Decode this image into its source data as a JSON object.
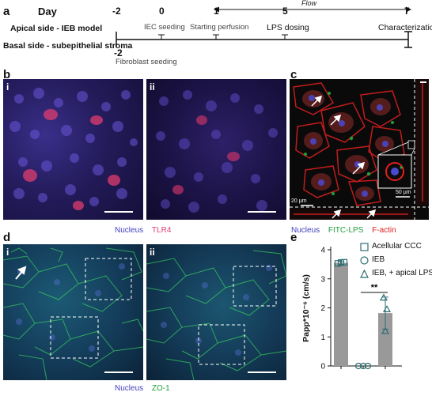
{
  "timeline": {
    "panel_label": "a",
    "day_label": "Day",
    "days": [
      "-2",
      "0",
      "1",
      "5",
      "7"
    ],
    "basal_day": "-2",
    "apical_label": "Apical side - IEB model",
    "basal_label": "Basal side - subepithelial stroma",
    "events": [
      "IEC seeding",
      "Starting perfusion",
      "LPS dosing",
      "Characterization"
    ],
    "basal_event": "Fibroblast seeding",
    "flow_label": "Flow"
  },
  "panel_b": {
    "label": "b",
    "sub_i": "i",
    "sub_ii": "ii",
    "legend_nucleus": "Nucleus",
    "legend_marker": "TLR4",
    "colors": {
      "nucleus": "#4040c0",
      "marker": "#e03c6e"
    }
  },
  "panel_c": {
    "label": "c",
    "scale_small": "50 µm",
    "scale_main": "20 µm",
    "legend_nucleus": "Nucleus",
    "legend_fitc": "FITC-LPS",
    "legend_actin": "F-actin",
    "colors": {
      "nucleus": "#4040c0",
      "fitc": "#1e9e3a",
      "actin": "#e02020"
    }
  },
  "panel_d": {
    "label": "d",
    "sub_i": "i",
    "sub_ii": "ii",
    "legend_nucleus": "Nucleus",
    "legend_marker": "ZO-1",
    "colors": {
      "nucleus": "#4040c0",
      "marker": "#1e9e3a"
    }
  },
  "panel_e": {
    "label": "e",
    "significance": "**",
    "legend": [
      {
        "label": "Acellular CCC",
        "marker": "square"
      },
      {
        "label": "IEB",
        "marker": "circle"
      },
      {
        "label": "IEB, + apical LPS",
        "marker": "triangle"
      }
    ],
    "chart_data": {
      "type": "bar",
      "categories": [
        "Acellular CCC",
        "IEB",
        "IEB, + apical LPS"
      ],
      "values": [
        3.55,
        0.0,
        1.82
      ],
      "errors": [
        0.05,
        0.0,
        0.55
      ],
      "points": [
        [
          3.53,
          3.56,
          3.57
        ],
        [
          0.0,
          0.0,
          0.0
        ],
        [
          2.35,
          1.95,
          1.2
        ]
      ],
      "ylabel": "Papp*10⁻⁶ (cm/s)",
      "yticks": [
        0,
        1,
        2,
        3,
        4
      ],
      "ylim": [
        0,
        4
      ],
      "bar_color": "#999999",
      "marker_color": "#2f6f73"
    }
  }
}
